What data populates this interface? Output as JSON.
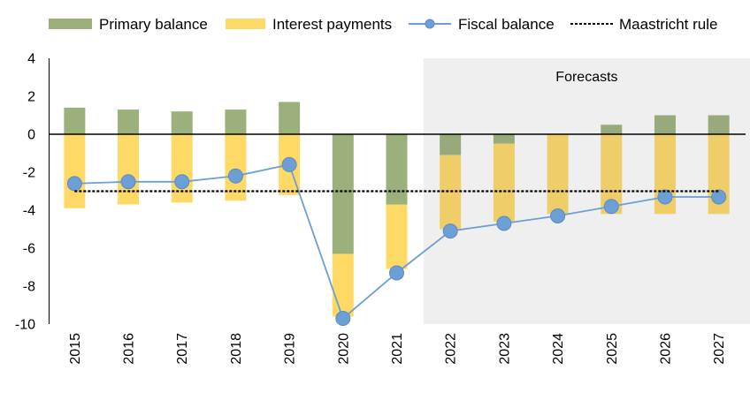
{
  "chart_data": {
    "type": "bar",
    "stacked": true,
    "categories": [
      "2015",
      "2016",
      "2017",
      "2018",
      "2019",
      "2020",
      "2021",
      "2022",
      "2023",
      "2024",
      "2025",
      "2026",
      "2027"
    ],
    "series": [
      {
        "name": "Primary balance",
        "type": "bar",
        "color": "#9BB07B",
        "values": [
          1.4,
          1.3,
          1.2,
          1.3,
          1.7,
          -6.3,
          -3.7,
          -1.1,
          -0.5,
          0.0,
          0.5,
          1.0,
          1.0
        ]
      },
      {
        "name": "Interest payments",
        "type": "bar",
        "color": "#FFD966",
        "values": [
          -3.9,
          -3.7,
          -3.6,
          -3.5,
          -3.2,
          -3.3,
          -3.4,
          -3.9,
          -4.1,
          -4.2,
          -4.2,
          -4.2,
          -4.2
        ]
      },
      {
        "name": "Fiscal balance",
        "type": "line",
        "color": "#6C9FD6",
        "marker": "circle",
        "values": [
          -2.6,
          -2.5,
          -2.5,
          -2.2,
          -1.6,
          -9.7,
          -7.3,
          -5.1,
          -4.7,
          -4.3,
          -3.8,
          -3.3,
          -3.3
        ]
      },
      {
        "name": "Maastricht rule",
        "type": "line",
        "color": "#000000",
        "style": "dashed",
        "values": [
          -3,
          -3,
          -3,
          -3,
          -3,
          -3,
          -3,
          -3,
          -3,
          -3,
          -3,
          -3,
          -3
        ]
      }
    ],
    "ylim": [
      -10,
      4
    ],
    "yticks": [
      "4",
      "2",
      "0",
      "-2",
      "-4",
      "-6",
      "-8",
      "-10"
    ],
    "grid": false,
    "legend_position": "top",
    "annotation": {
      "text": "Forecasts",
      "from": "2022",
      "to": "2027",
      "shade_color": "#EFEFEF"
    }
  }
}
